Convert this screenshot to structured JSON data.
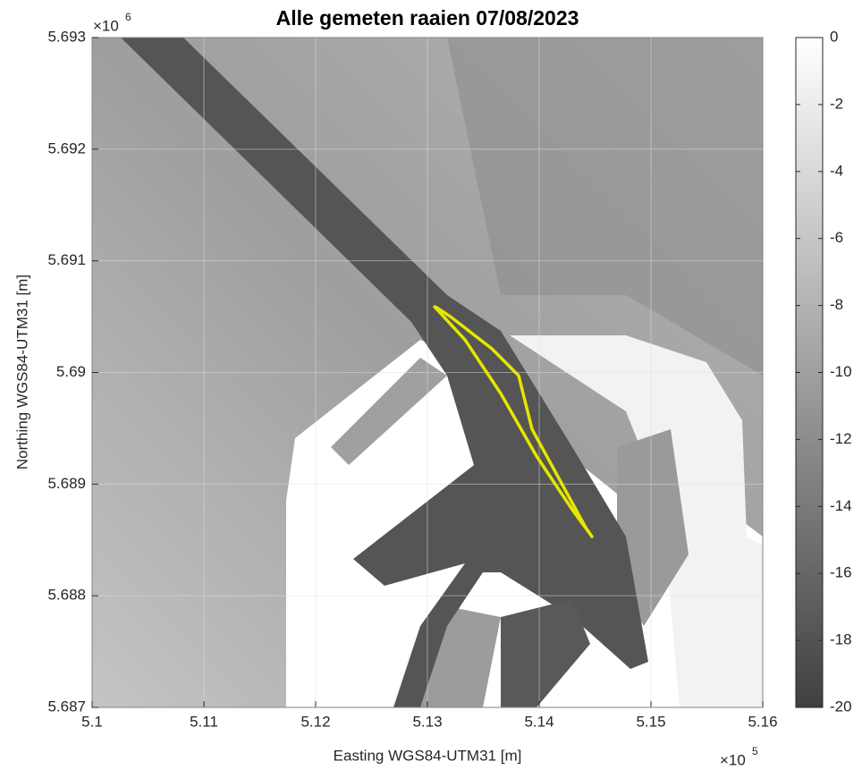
{
  "chart_data": {
    "type": "line",
    "title": "Alle gemeten raaien 07/08/2023",
    "xlabel": "Easting WGS84-UTM31 [m]",
    "ylabel": "Northing WGS84-UTM31 [m]",
    "x_exponent": {
      "base": "×10",
      "power": "5"
    },
    "y_exponent": {
      "base": "×10",
      "power": "6"
    },
    "xlim": [
      510000,
      516000
    ],
    "ylim": [
      5687000,
      5693000
    ],
    "xticks": [
      {
        "value": 510000,
        "label": "5.1"
      },
      {
        "value": 511000,
        "label": "5.11"
      },
      {
        "value": 512000,
        "label": "5.12"
      },
      {
        "value": 513000,
        "label": "5.13"
      },
      {
        "value": 514000,
        "label": "5.14"
      },
      {
        "value": 515000,
        "label": "5.15"
      },
      {
        "value": 516000,
        "label": "5.16"
      }
    ],
    "yticks": [
      {
        "value": 5687000,
        "label": "5.687"
      },
      {
        "value": 5688000,
        "label": "5.688"
      },
      {
        "value": 5689000,
        "label": "5.689"
      },
      {
        "value": 5690000,
        "label": "5.69"
      },
      {
        "value": 5691000,
        "label": "5.691"
      },
      {
        "value": 5692000,
        "label": "5.692"
      },
      {
        "value": 5693000,
        "label": "5.693"
      }
    ],
    "grid": true,
    "series": [
      {
        "color": "#e6e600",
        "x": [
          513056,
          513336,
          513656,
          513976,
          514296,
          514472,
          514416,
          513936,
          513816,
          513576,
          513216,
          513072
        ],
        "values": [
          5690597,
          5690293,
          5689812,
          5689251,
          5688771,
          5688530,
          5688611,
          5689492,
          5689972,
          5690213,
          5690493,
          5690589
        ]
      }
    ],
    "colorbar": {
      "clim": [
        -20,
        0
      ],
      "ticks": [
        0,
        -2,
        -4,
        -6,
        -8,
        -10,
        -12,
        -14,
        -16,
        -18,
        -20
      ],
      "colors": [
        "#404040",
        "#ffffff"
      ]
    }
  }
}
